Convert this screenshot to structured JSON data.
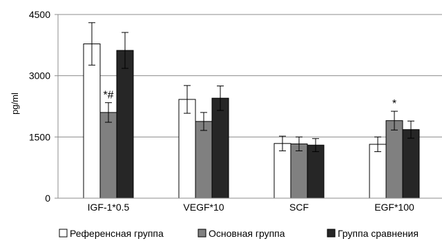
{
  "chart_data": {
    "type": "bar",
    "ylabel": "pg/ml",
    "ylim": [
      0,
      4500
    ],
    "yticks": [
      "0",
      "1500",
      "3000",
      "4500"
    ],
    "grid": true,
    "legend_position": "bottom",
    "categories": [
      "IGF-1*0.5",
      "VEGF*10",
      "SCF",
      "EGF*100"
    ],
    "series": [
      {
        "name": "Референсная группа",
        "color": "#ffffff",
        "values": [
          3780,
          2420,
          1340,
          1320
        ],
        "errors": [
          520,
          340,
          180,
          180
        ],
        "annotations": [
          "",
          "",
          "",
          ""
        ]
      },
      {
        "name": "Основная группа",
        "color": "#808080",
        "values": [
          2100,
          1880,
          1330,
          1900
        ],
        "errors": [
          240,
          220,
          170,
          230
        ],
        "annotations": [
          "*#",
          "",
          "",
          "*"
        ]
      },
      {
        "name": "Группа сравнения",
        "color": "#262626",
        "values": [
          3620,
          2450,
          1300,
          1680
        ],
        "errors": [
          440,
          300,
          160,
          210
        ],
        "annotations": [
          "",
          "",
          "",
          ""
        ]
      }
    ]
  }
}
